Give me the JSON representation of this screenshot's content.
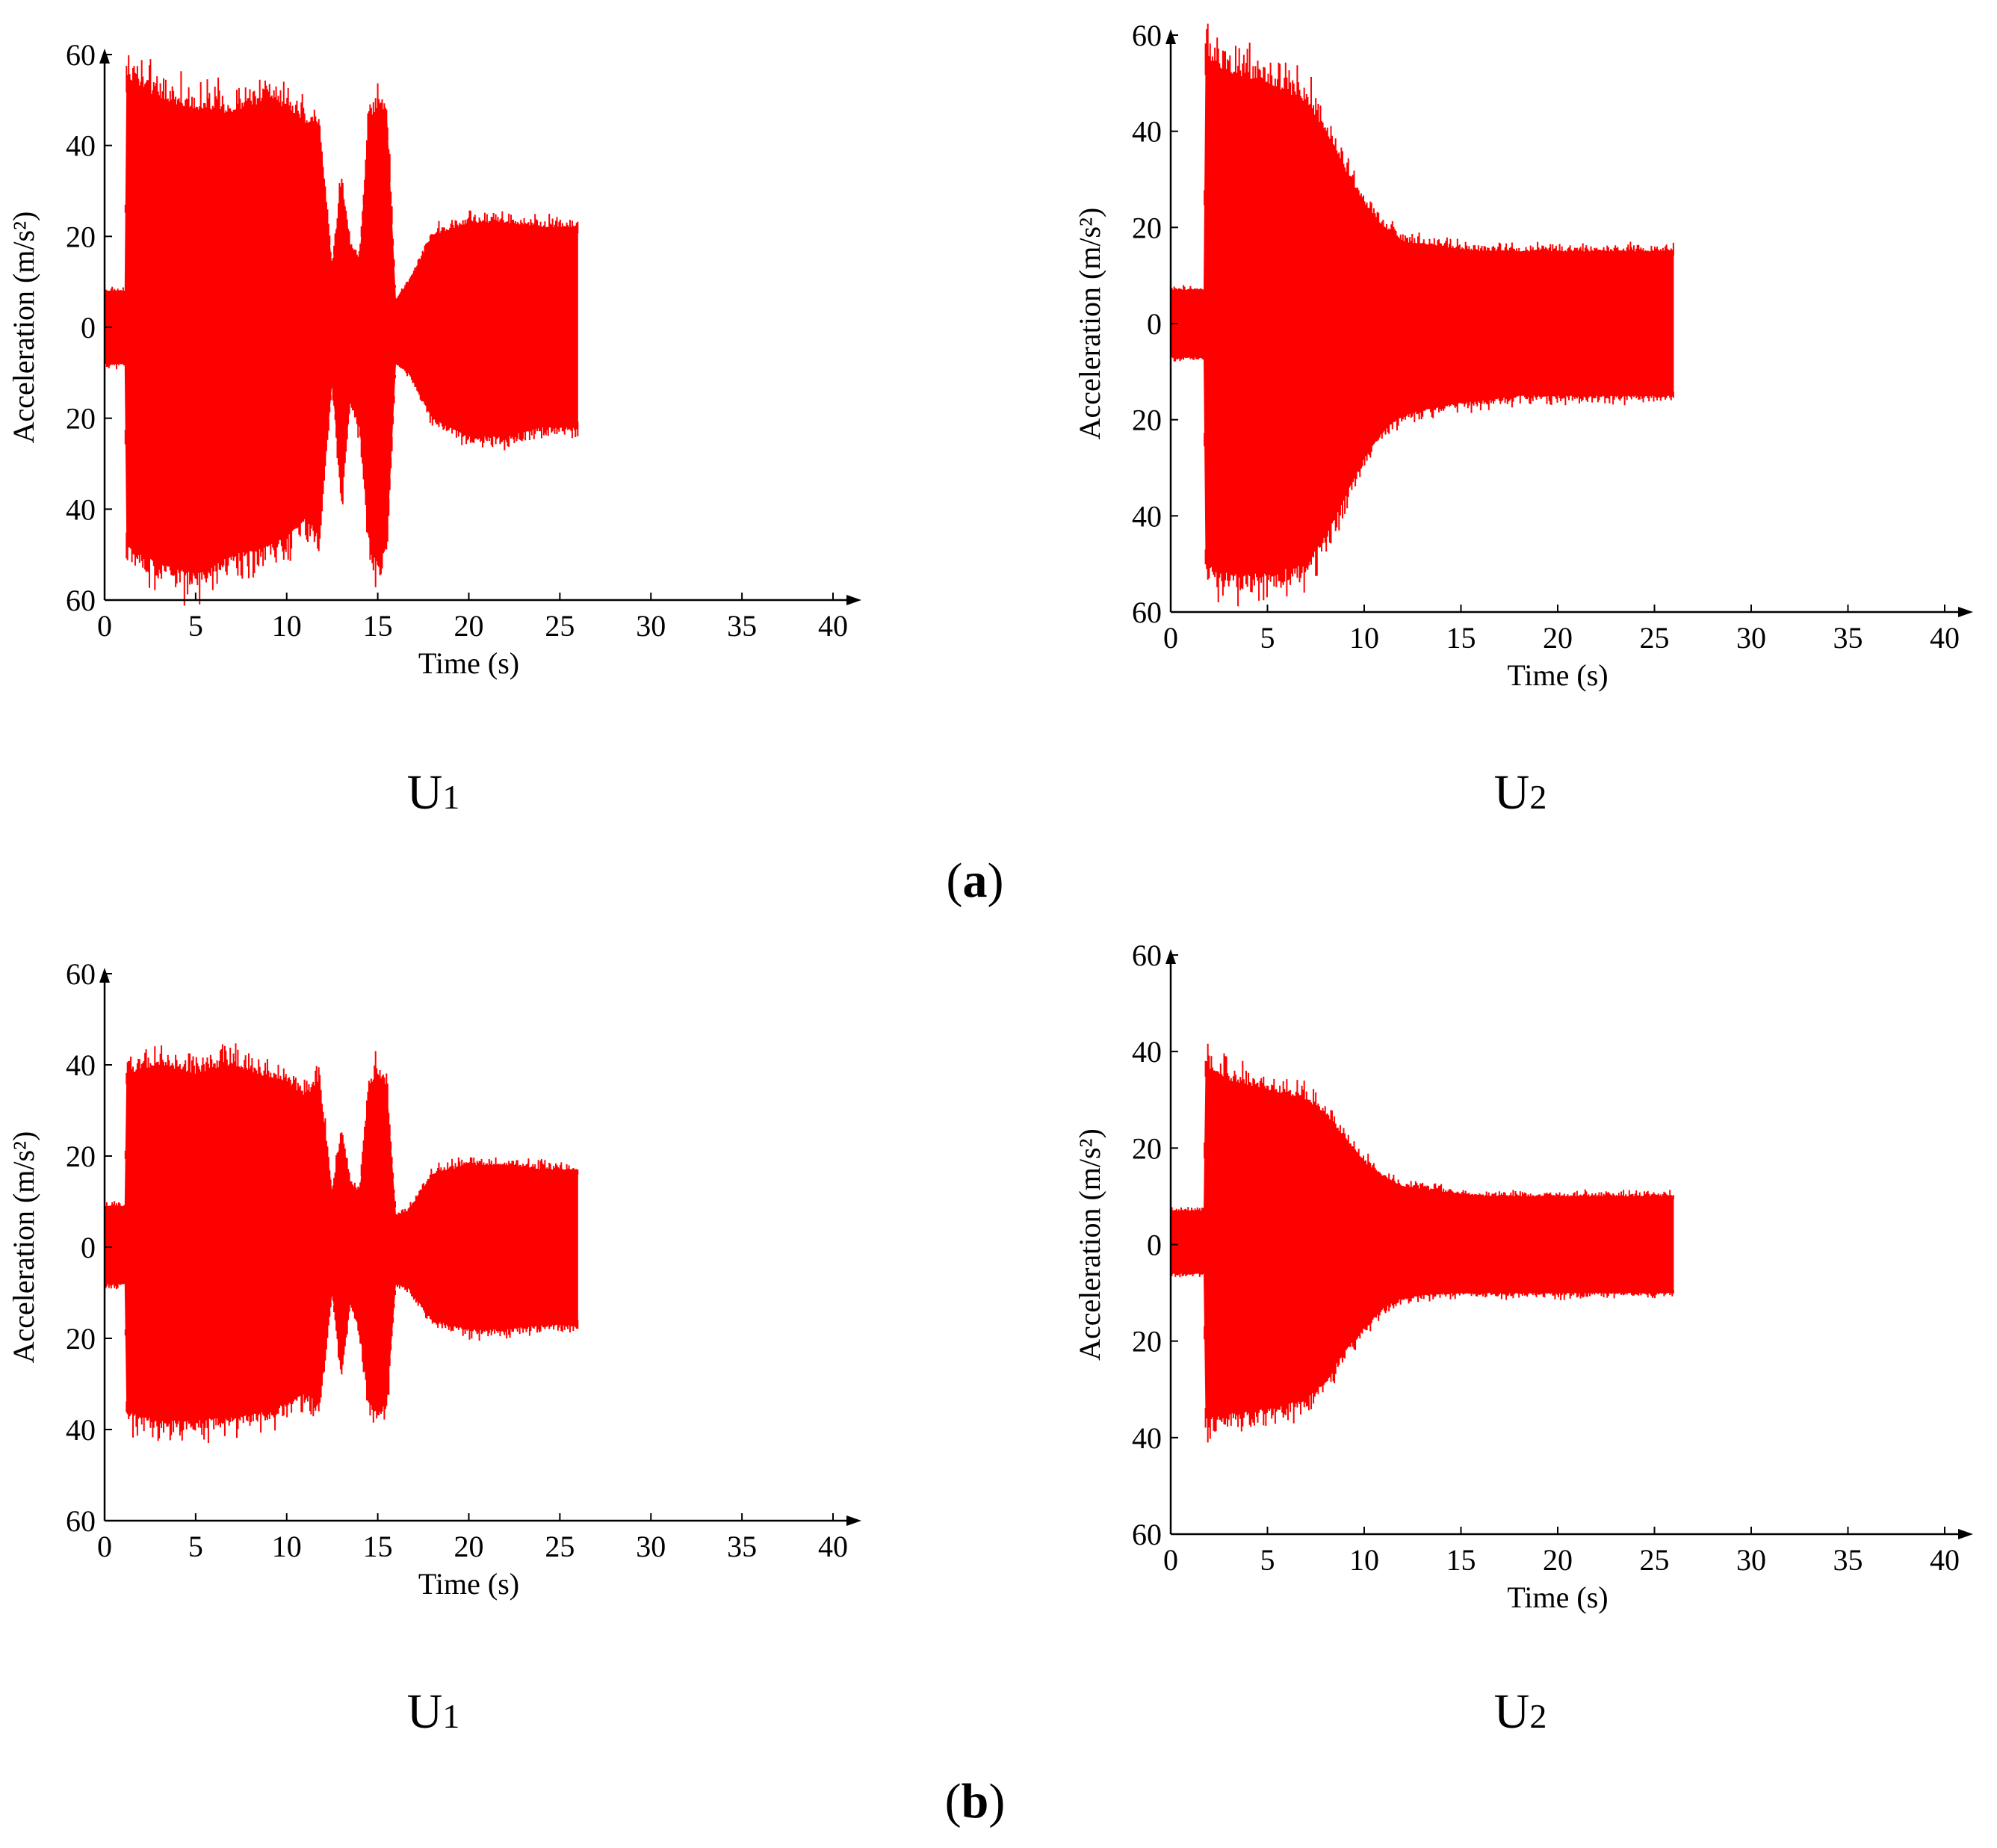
{
  "figure": {
    "part_labels": {
      "a": {
        "open": "(",
        "letter": "a",
        "close": ")"
      },
      "b": {
        "open": "(",
        "letter": "b",
        "close": ")"
      }
    }
  },
  "chart_data": [
    {
      "type": "line",
      "part": "a",
      "panel_label": {
        "base": "U",
        "subscript": "1"
      },
      "xlabel": "Time (s)",
      "ylabel": "Acceleration (m/s²)",
      "xlim": [
        0,
        40
      ],
      "ylim": [
        -60,
        60
      ],
      "xticks": [
        0,
        5,
        10,
        15,
        20,
        25,
        30,
        35,
        40
      ],
      "ytick_values": [
        60,
        40,
        20,
        0,
        -20,
        -40,
        -60
      ],
      "ytick_labels": [
        "60",
        "40",
        "20",
        "0",
        "20",
        "40",
        "60"
      ],
      "color": "#ff0000",
      "series": [
        {
          "x": [
            0,
            1.1,
            1.2,
            3,
            5,
            7,
            9,
            10,
            11,
            11.8,
            12.5,
            13,
            13.5,
            14,
            14.5,
            15,
            15.5,
            16,
            16.7,
            18,
            20,
            22,
            24,
            26
          ],
          "upper": [
            8,
            8,
            55,
            50,
            48,
            47,
            50,
            48,
            45,
            44,
            13,
            32,
            18,
            15,
            46,
            48,
            47,
            6,
            10,
            20,
            23,
            23,
            22,
            22
          ],
          "lower": [
            -8,
            -8,
            -48,
            -52,
            -54,
            -50,
            -48,
            -46,
            -42,
            -45,
            -12,
            -38,
            -16,
            -22,
            -46,
            -52,
            -48,
            -8,
            -10,
            -20,
            -24,
            -24,
            -22,
            -22
          ]
        }
      ]
    },
    {
      "type": "line",
      "part": "a",
      "panel_label": {
        "base": "U",
        "subscript": "2"
      },
      "xlabel": "Time (s)",
      "ylabel": "Acceleration (m/s²)",
      "xlim": [
        0,
        40
      ],
      "ylim": [
        -60,
        60
      ],
      "xticks": [
        0,
        5,
        10,
        15,
        20,
        25,
        30,
        35,
        40
      ],
      "ytick_values": [
        60,
        40,
        20,
        0,
        -20,
        -40,
        -60
      ],
      "ytick_labels": [
        "60",
        "40",
        "20",
        "0",
        "20",
        "40",
        "60"
      ],
      "color": "#ff0000",
      "series": [
        {
          "x": [
            0,
            1.7,
            1.8,
            3,
            5,
            7,
            8,
            9,
            10,
            11,
            12,
            14,
            16,
            18,
            20,
            22,
            24,
            26
          ],
          "upper": [
            7,
            7,
            55,
            52,
            50,
            46,
            40,
            32,
            25,
            20,
            17,
            16,
            15,
            15,
            15,
            15,
            15,
            15
          ],
          "lower": [
            -7,
            -7,
            -50,
            -52,
            -52,
            -50,
            -44,
            -36,
            -28,
            -22,
            -19,
            -17,
            -16,
            -15,
            -15,
            -15,
            -15,
            -15
          ]
        }
      ]
    },
    {
      "type": "line",
      "part": "b",
      "panel_label": {
        "base": "U",
        "subscript": "1"
      },
      "xlabel": "Time (s)",
      "ylabel": "Acceleration (m/s²)",
      "xlim": [
        0,
        40
      ],
      "ylim": [
        -60,
        60
      ],
      "xticks": [
        0,
        5,
        10,
        15,
        20,
        25,
        30,
        35,
        40
      ],
      "ytick_values": [
        60,
        40,
        20,
        0,
        -20,
        -40,
        -60
      ],
      "ytick_labels": [
        "60",
        "40",
        "20",
        "0",
        "20",
        "40",
        "60"
      ],
      "color": "#ff0000",
      "series": [
        {
          "x": [
            0,
            1.1,
            1.2,
            3,
            5,
            7,
            9,
            10,
            11,
            11.8,
            12.5,
            13,
            13.5,
            14,
            14.5,
            15,
            15.5,
            16,
            16.7,
            18,
            20,
            22,
            24,
            26
          ],
          "upper": [
            9,
            9,
            38,
            40,
            38,
            40,
            37,
            36,
            33,
            36,
            12,
            25,
            14,
            12,
            35,
            38,
            35,
            7,
            8,
            16,
            18,
            18,
            17,
            17
          ],
          "lower": [
            -8,
            -8,
            -36,
            -38,
            -38,
            -37,
            -36,
            -34,
            -32,
            -34,
            -10,
            -28,
            -12,
            -18,
            -34,
            -36,
            -34,
            -8,
            -9,
            -16,
            -18,
            -18,
            -17,
            -17
          ]
        }
      ]
    },
    {
      "type": "line",
      "part": "b",
      "panel_label": {
        "base": "U",
        "subscript": "2"
      },
      "xlabel": "Time (s)",
      "ylabel": "Acceleration (m/s²)",
      "xlim": [
        0,
        40
      ],
      "ylim": [
        -60,
        60
      ],
      "xticks": [
        0,
        5,
        10,
        15,
        20,
        25,
        30,
        35,
        40
      ],
      "ytick_values": [
        60,
        40,
        20,
        0,
        -20,
        -40,
        -60
      ],
      "ytick_labels": [
        "60",
        "40",
        "20",
        "0",
        "20",
        "40",
        "60"
      ],
      "color": "#ff0000",
      "series": [
        {
          "x": [
            0,
            1.7,
            1.8,
            3,
            5,
            7,
            8,
            9,
            10,
            11,
            12,
            14,
            16,
            18,
            20,
            22,
            24,
            26
          ],
          "upper": [
            7,
            7,
            37,
            34,
            32,
            30,
            27,
            22,
            17,
            14,
            12,
            11,
            10,
            10,
            10,
            10,
            10,
            10
          ],
          "lower": [
            -6,
            -6,
            -36,
            -35,
            -34,
            -32,
            -28,
            -22,
            -17,
            -13,
            -11,
            -10,
            -10,
            -10,
            -10,
            -10,
            -10,
            -10
          ]
        }
      ]
    }
  ]
}
